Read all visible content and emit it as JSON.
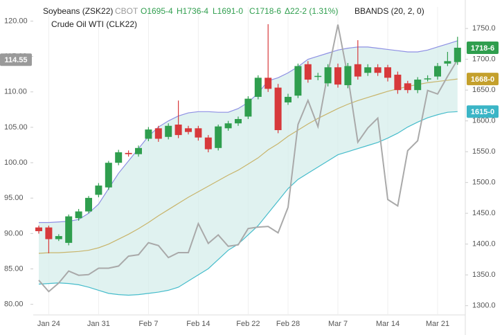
{
  "chart_data": {
    "type": "candlestick",
    "header": {
      "symbol": "Soybeans (ZSK22)",
      "exchange": "CBOT",
      "ohlc": [
        "O1695-4",
        "H1736-4",
        "L1691-0",
        "C1718-6"
      ],
      "change": "Δ22-2 (1.31%)",
      "indicator": "BBANDS (20, 2, 0)",
      "compare": "Crude Oil WTI (CLK22)"
    },
    "categories": [
      null,
      "Jan 24",
      null,
      null,
      null,
      null,
      "Jan 31",
      null,
      null,
      null,
      null,
      "Feb 7",
      null,
      null,
      null,
      null,
      "Feb 14",
      null,
      null,
      null,
      null,
      "Feb 22",
      null,
      null,
      null,
      "Feb 28",
      null,
      null,
      null,
      null,
      "Mar 7",
      null,
      null,
      null,
      null,
      "Mar 14",
      null,
      null,
      null,
      null,
      "Mar 21",
      null,
      null
    ],
    "candles": {
      "up_color": "#2f9e4e",
      "down_color": "#d7393b",
      "open": [
        1427,
        1427,
        1408,
        1402,
        1442,
        1453,
        1480,
        1492,
        1532,
        1548,
        1546,
        1571,
        1588,
        1574,
        1594,
        1588,
        1588,
        1573,
        1556,
        1588,
        1596,
        1607,
        1639,
        1670,
        1654,
        1630,
        1641,
        1692,
        1672,
        1661,
        1687,
        1658,
        1692,
        1678,
        1687,
        1687,
        1675,
        1661,
        1650,
        1669,
        1672,
        1693,
        1695.5
      ],
      "high": [
        1430,
        1430,
        1416,
        1448,
        1457,
        1478,
        1499,
        1535,
        1553,
        1552,
        1560,
        1590,
        1592,
        1596,
        1633,
        1592,
        1592,
        1577,
        1594,
        1600,
        1607,
        1640,
        1674,
        1757,
        1660,
        1644,
        1693,
        1697,
        1678,
        1692,
        1693,
        1694,
        1731,
        1692,
        1692,
        1691,
        1680,
        1665,
        1671,
        1674,
        1694,
        1712,
        1736.5
      ],
      "low": [
        1417,
        1385,
        1405,
        1398,
        1438,
        1450,
        1476,
        1488,
        1528,
        1542,
        1542,
        1567,
        1566,
        1570,
        1572,
        1578,
        1568,
        1549,
        1552,
        1584,
        1592,
        1603,
        1635,
        1647,
        1580,
        1626,
        1637,
        1662,
        1666,
        1656,
        1654,
        1653,
        1667,
        1673,
        1673,
        1664,
        1644,
        1645,
        1645,
        1664,
        1667,
        1689,
        1691
      ],
      "close": [
        1421,
        1408,
        1413,
        1445,
        1453,
        1475,
        1495,
        1532,
        1549,
        1546,
        1556,
        1586,
        1571,
        1592,
        1577,
        1582,
        1573,
        1554,
        1591,
        1596,
        1603,
        1636,
        1670,
        1652,
        1585,
        1639,
        1689,
        1667,
        1673,
        1687,
        1659,
        1689,
        1672,
        1687,
        1678,
        1670,
        1650,
        1650,
        1667,
        1669,
        1689,
        1697,
        1718.75
      ]
    },
    "bands": {
      "fill": "#d5eeeb",
      "upper": {
        "color": "#8d8fe3",
        "values": [
          1435,
          1435,
          1436,
          1437,
          1440,
          1450,
          1465,
          1490,
          1515,
          1535,
          1555,
          1575,
          1590,
          1600,
          1608,
          1613,
          1615,
          1615,
          1614,
          1614,
          1620,
          1630,
          1645,
          1665,
          1670,
          1678,
          1688,
          1700,
          1705,
          1710,
          1715,
          1718,
          1720,
          1720,
          1718,
          1716,
          1714,
          1712,
          1712,
          1715,
          1720,
          1725,
          1730
        ]
      },
      "middle": {
        "color": "#c8b46a",
        "values": [
          1385,
          1386,
          1386,
          1387,
          1388,
          1390,
          1394,
          1400,
          1408,
          1416,
          1425,
          1435,
          1446,
          1456,
          1466,
          1476,
          1485,
          1494,
          1503,
          1512,
          1520,
          1530,
          1540,
          1553,
          1563,
          1575,
          1585,
          1595,
          1604,
          1612,
          1620,
          1627,
          1633,
          1638,
          1643,
          1648,
          1652,
          1656,
          1659,
          1662,
          1664,
          1666,
          1668
        ]
      },
      "lower": {
        "color": "#45bccb",
        "values": [
          1335,
          1336,
          1337,
          1336,
          1334,
          1330,
          1325,
          1320,
          1318,
          1317,
          1318,
          1320,
          1322,
          1325,
          1330,
          1340,
          1350,
          1360,
          1375,
          1390,
          1400,
          1415,
          1430,
          1450,
          1470,
          1490,
          1505,
          1515,
          1525,
          1535,
          1545,
          1550,
          1555,
          1560,
          1565,
          1572,
          1580,
          1590,
          1598,
          1605,
          1610,
          1614,
          1615
        ]
      }
    },
    "series": [
      {
        "name": "Crude Oil WTI (CLK22)",
        "color": "#a9a9a9",
        "axis": "y2",
        "values": [
          83.4,
          81.8,
          83.0,
          84.7,
          84.1,
          84.2,
          85.1,
          85.1,
          85.4,
          86.8,
          87.0,
          88.7,
          88.3,
          86.6,
          87.3,
          87.3,
          91.4,
          88.6,
          89.8,
          88.2,
          88.4,
          90.7,
          90.9,
          91.0,
          90.1,
          93.7,
          105.4,
          108.8,
          105.1,
          112.7,
          119.5,
          112.2,
          102.9,
          104.9,
          106.3,
          94.8,
          93.9,
          101.7,
          103.1,
          110.2,
          109.7,
          112.2,
          114.55
        ]
      }
    ],
    "ylim": [
      1285,
      1785
    ],
    "yticks": [
      {
        "value": 1300,
        "label": "1300.0"
      },
      {
        "value": 1350,
        "label": "1350.0"
      },
      {
        "value": 1400,
        "label": "1400.0"
      },
      {
        "value": 1450,
        "label": "1450.0"
      },
      {
        "value": 1500,
        "label": "1500.0"
      },
      {
        "value": 1550,
        "label": "1550.0"
      },
      {
        "value": 1600,
        "label": "1600.0"
      },
      {
        "value": 1650,
        "label": "1650.0"
      },
      {
        "value": 1700,
        "label": "1700.0"
      },
      {
        "value": 1750,
        "label": "1750.0"
      }
    ],
    "y2lim": [
      78.5,
      122
    ],
    "y2ticks": [
      {
        "value": 80,
        "label": "80.00"
      },
      {
        "value": 85,
        "label": "85.00"
      },
      {
        "value": 90,
        "label": "90.00"
      },
      {
        "value": 95,
        "label": "95.00"
      },
      {
        "value": 100,
        "label": "100.00"
      },
      {
        "value": 105,
        "label": "105.00"
      },
      {
        "value": 110,
        "label": "110.00"
      },
      {
        "value": 115,
        "label": "115.00"
      },
      {
        "value": 120,
        "label": "120.00"
      }
    ],
    "tags": [
      {
        "value": 1718.75,
        "label": "1718-6",
        "color": "#2f9e4e"
      },
      {
        "value": 1668,
        "label": "1668-0",
        "color": "#c4a02c"
      },
      {
        "value": 1615,
        "label": "1615-0",
        "color": "#3bb5c6"
      }
    ],
    "y2tags": [
      {
        "value": 114.55,
        "color": "#9a9a9a"
      }
    ],
    "grid": true
  }
}
